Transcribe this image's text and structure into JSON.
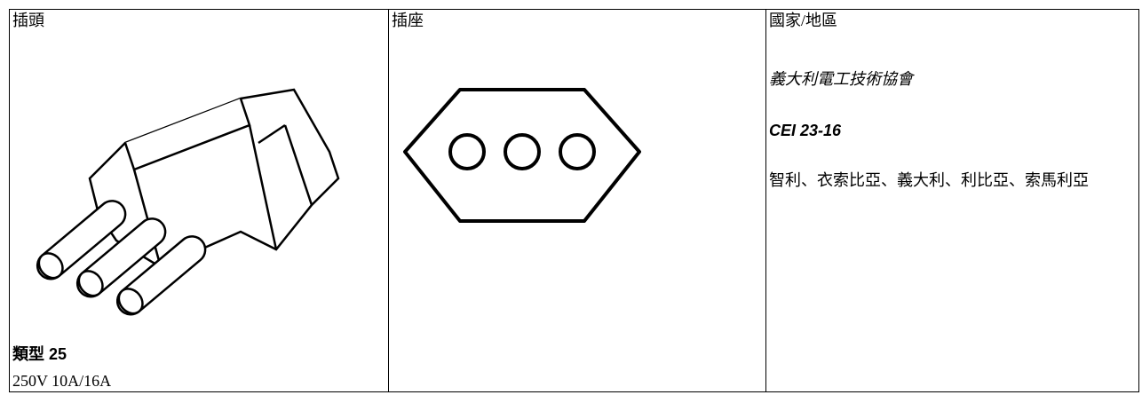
{
  "columns": [
    {
      "header": "插頭",
      "type": "類型 25",
      "rating": "250V 10A/16A"
    },
    {
      "header": "插座"
    },
    {
      "header": "國家/地區",
      "organization": "義大利電工技術協會",
      "standard": "CEI 23-16",
      "countries": "智利、衣索比亞、義大利、利比亞、索馬利亞"
    }
  ]
}
